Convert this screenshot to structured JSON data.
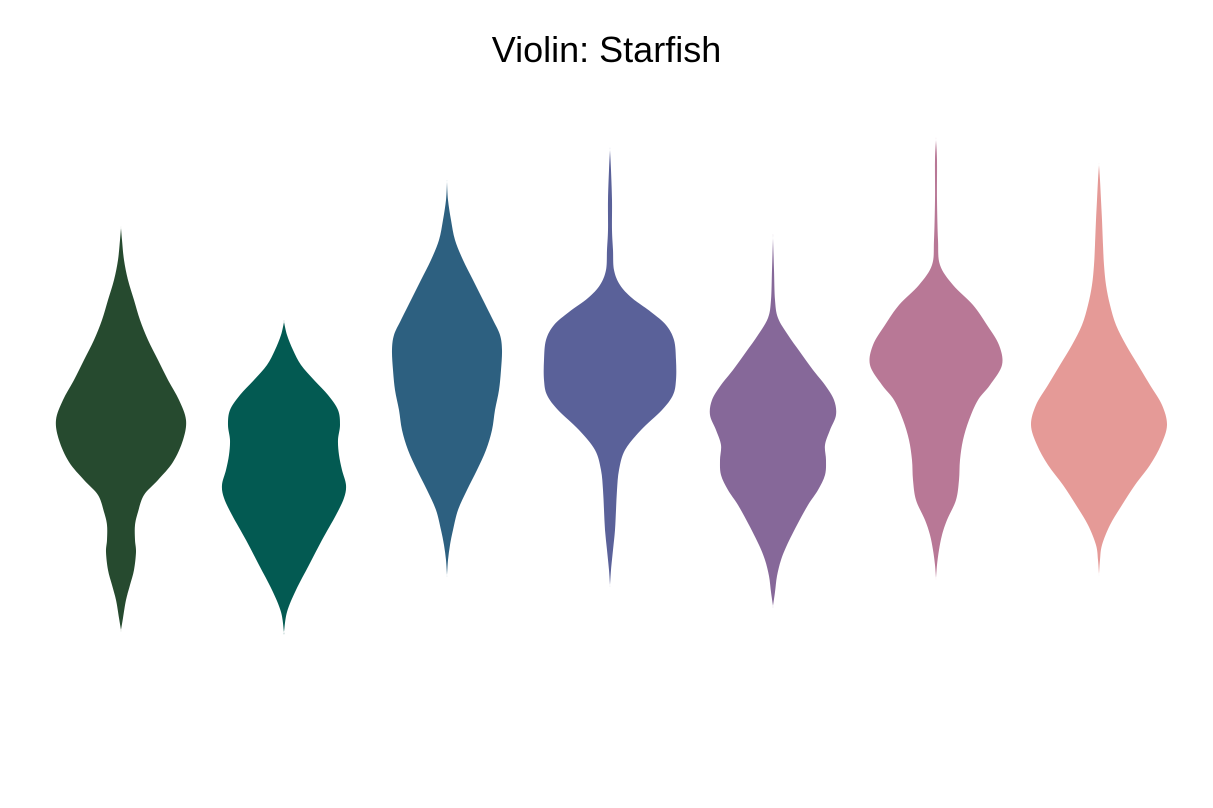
{
  "chart_data": {
    "type": "violin",
    "title": "Violin: Starfish",
    "xlabel": "",
    "ylabel": "",
    "axes_visible": false,
    "grid": false,
    "ylim": [
      0,
      1000
    ],
    "series": [
      {
        "color": "#264a2f",
        "profile": [
          [
            630,
            0
          ],
          [
            618,
            2
          ],
          [
            600,
            5
          ],
          [
            585,
            9
          ],
          [
            570,
            13
          ],
          [
            552,
            15
          ],
          [
            540,
            14
          ],
          [
            525,
            14
          ],
          [
            512,
            17
          ],
          [
            495,
            23
          ],
          [
            480,
            37
          ],
          [
            462,
            52
          ],
          [
            440,
            62
          ],
          [
            420,
            65
          ],
          [
            400,
            58
          ],
          [
            380,
            47
          ],
          [
            360,
            37
          ],
          [
            340,
            27
          ],
          [
            320,
            19
          ],
          [
            300,
            13
          ],
          [
            280,
            7
          ],
          [
            260,
            3
          ],
          [
            240,
            1
          ],
          [
            228,
            0
          ]
        ]
      },
      {
        "color": "#035a52",
        "profile": [
          [
            632,
            0
          ],
          [
            612,
            3
          ],
          [
            590,
            12
          ],
          [
            565,
            25
          ],
          [
            540,
            38
          ],
          [
            515,
            52
          ],
          [
            498,
            60
          ],
          [
            485,
            62
          ],
          [
            470,
            58
          ],
          [
            455,
            55
          ],
          [
            440,
            54
          ],
          [
            425,
            56
          ],
          [
            410,
            54
          ],
          [
            395,
            44
          ],
          [
            380,
            30
          ],
          [
            365,
            17
          ],
          [
            350,
            9
          ],
          [
            335,
            3
          ],
          [
            322,
            0
          ]
        ]
      },
      {
        "color": "#2d6080",
        "profile": [
          [
            575,
            0
          ],
          [
            560,
            1
          ],
          [
            545,
            3
          ],
          [
            530,
            6
          ],
          [
            510,
            11
          ],
          [
            490,
            20
          ],
          [
            470,
            30
          ],
          [
            450,
            39
          ],
          [
            430,
            45
          ],
          [
            410,
            48
          ],
          [
            390,
            52
          ],
          [
            370,
            54
          ],
          [
            350,
            55
          ],
          [
            335,
            53
          ],
          [
            320,
            46
          ],
          [
            300,
            36
          ],
          [
            280,
            26
          ],
          [
            260,
            16
          ],
          [
            240,
            8
          ],
          [
            220,
            4
          ],
          [
            200,
            1
          ],
          [
            182,
            0
          ]
        ]
      },
      {
        "color": "#5a6199",
        "profile": [
          [
            585,
            0
          ],
          [
            570,
            1
          ],
          [
            550,
            3
          ],
          [
            530,
            5
          ],
          [
            510,
            6
          ],
          [
            490,
            7
          ],
          [
            470,
            9
          ],
          [
            450,
            15
          ],
          [
            430,
            31
          ],
          [
            410,
            52
          ],
          [
            395,
            63
          ],
          [
            380,
            66
          ],
          [
            360,
            66
          ],
          [
            340,
            64
          ],
          [
            325,
            56
          ],
          [
            312,
            41
          ],
          [
            298,
            22
          ],
          [
            285,
            10
          ],
          [
            270,
            4
          ],
          [
            250,
            3
          ],
          [
            230,
            2
          ],
          [
            200,
            2
          ],
          [
            170,
            1
          ],
          [
            150,
            0
          ]
        ]
      },
      {
        "color": "#866899",
        "profile": [
          [
            606,
            0
          ],
          [
            592,
            2
          ],
          [
            576,
            4
          ],
          [
            560,
            8
          ],
          [
            545,
            14
          ],
          [
            525,
            24
          ],
          [
            505,
            35
          ],
          [
            490,
            45
          ],
          [
            475,
            52
          ],
          [
            460,
            53
          ],
          [
            445,
            52
          ],
          [
            430,
            57
          ],
          [
            415,
            63
          ],
          [
            400,
            61
          ],
          [
            385,
            52
          ],
          [
            370,
            40
          ],
          [
            352,
            27
          ],
          [
            335,
            15
          ],
          [
            318,
            5
          ],
          [
            300,
            2
          ],
          [
            270,
            1
          ],
          [
            238,
            0
          ]
        ]
      },
      {
        "color": "#b87896",
        "profile": [
          [
            578,
            0
          ],
          [
            565,
            1
          ],
          [
            550,
            3
          ],
          [
            535,
            6
          ],
          [
            520,
            11
          ],
          [
            500,
            20
          ],
          [
            480,
            23
          ],
          [
            460,
            24
          ],
          [
            440,
            27
          ],
          [
            420,
            33
          ],
          [
            400,
            42
          ],
          [
            385,
            54
          ],
          [
            365,
            66
          ],
          [
            345,
            63
          ],
          [
            325,
            51
          ],
          [
            305,
            37
          ],
          [
            285,
            17
          ],
          [
            265,
            4
          ],
          [
            240,
            2
          ],
          [
            200,
            1
          ],
          [
            160,
            1
          ],
          [
            140,
            0
          ]
        ]
      },
      {
        "color": "#e59a97",
        "profile": [
          [
            574,
            0
          ],
          [
            560,
            1
          ],
          [
            545,
            3
          ],
          [
            525,
            11
          ],
          [
            505,
            23
          ],
          [
            485,
            36
          ],
          [
            465,
            51
          ],
          [
            445,
            62
          ],
          [
            425,
            68
          ],
          [
            405,
            63
          ],
          [
            385,
            51
          ],
          [
            365,
            39
          ],
          [
            345,
            27
          ],
          [
            325,
            17
          ],
          [
            305,
            11
          ],
          [
            285,
            7
          ],
          [
            265,
            5
          ],
          [
            245,
            4
          ],
          [
            220,
            3
          ],
          [
            200,
            2
          ],
          [
            180,
            1
          ],
          [
            165,
            0
          ]
        ]
      }
    ]
  }
}
